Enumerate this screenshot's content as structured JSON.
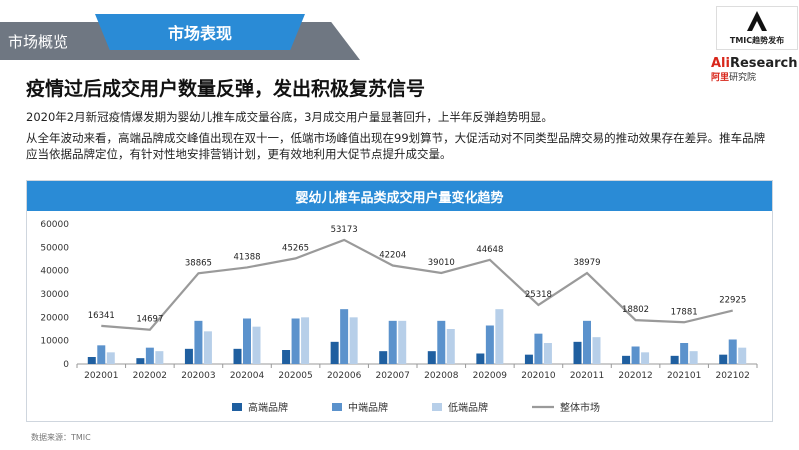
{
  "section": {
    "label": "市场概览",
    "tab": "市场表现"
  },
  "logos": {
    "tmic": "TMIC趋势发布",
    "ali_research": {
      "ali": "Ali",
      "research": "Research",
      "cn_red": "阿里",
      "cn": "研究院"
    }
  },
  "headline": "疫情过后成交用户数量反弹，发出积极复苏信号",
  "paragraphs": [
    "2020年2月新冠疫情爆发期为婴幼儿推车成交量谷底，3月成交用户量显著回升，上半年反弹趋势明显。",
    "从全年波动来看，高端品牌成交峰值出现在双十一，低端市场峰值出现在99划算节，大促活动对不同类型品牌交易的推动效果存在差异。推车品牌应当依据品牌定位，有针对性地安排营销计划，更有效地利用大促节点提升成交量。"
  ],
  "source": "数据来源：TMIC",
  "chart_data": {
    "type": "bar",
    "title": "婴幼儿推车品类成交用户量变化趋势",
    "categories": [
      "202001",
      "202002",
      "202003",
      "202004",
      "202005",
      "202006",
      "202007",
      "202008",
      "202009",
      "202010",
      "202011",
      "202012",
      "202101",
      "202102"
    ],
    "ylim": [
      0,
      60000
    ],
    "yticks": [
      0,
      10000,
      20000,
      30000,
      40000,
      50000,
      60000
    ],
    "grid": false,
    "legend": "bottom",
    "series": [
      {
        "name": "高端品牌",
        "type": "bar",
        "color": "#1f5fa0",
        "values": [
          3000,
          2500,
          6500,
          6500,
          6000,
          9500,
          5500,
          5500,
          4500,
          4000,
          9500,
          3500,
          3500,
          4000
        ]
      },
      {
        "name": "中端品牌",
        "type": "bar",
        "color": "#5b92cc",
        "values": [
          8000,
          7000,
          18500,
          19500,
          19500,
          23500,
          18500,
          18500,
          16500,
          13000,
          18500,
          7500,
          9000,
          10500
        ]
      },
      {
        "name": "低端品牌",
        "type": "bar",
        "color": "#b7cfe9",
        "values": [
          5000,
          5500,
          14000,
          16000,
          20000,
          20000,
          18500,
          15000,
          23500,
          9000,
          11500,
          5000,
          5500,
          7000
        ]
      },
      {
        "name": "整体市场",
        "type": "line",
        "color": "#9a9a9a",
        "values": [
          16341,
          14697,
          38865,
          41388,
          45265,
          53173,
          42204,
          39010,
          44648,
          25318,
          38979,
          18802,
          17881,
          22925
        ],
        "labels": [
          "16341",
          "14697",
          "38865",
          "41388",
          "45265",
          "53173",
          "42204",
          "39010",
          "44648",
          "25318",
          "38979",
          "18802",
          "17881",
          "22925"
        ]
      }
    ]
  }
}
